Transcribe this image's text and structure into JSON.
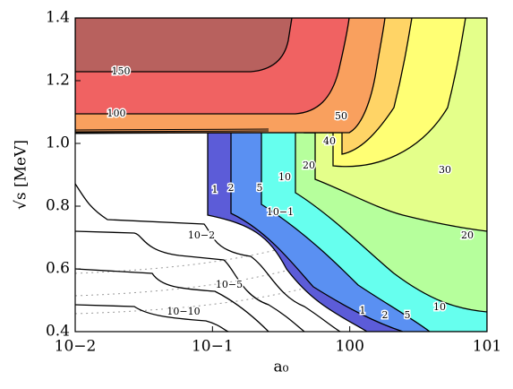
{
  "chart_data": {
    "type": "contour",
    "xlabel": "a₀",
    "ylabel": "√s [MeV]",
    "xscale": "log",
    "xlim": [
      0.01,
      10
    ],
    "ylim": [
      0.4,
      1.4
    ],
    "xticks": [
      {
        "value": 0.01,
        "label": "10−2"
      },
      {
        "value": 0.1,
        "label": "10−1"
      },
      {
        "value": 1,
        "label": "100"
      },
      {
        "value": 10,
        "label": "101"
      }
    ],
    "yticks": [
      0.4,
      0.6,
      0.8,
      {
        "value": 1,
        "label": "1.0"
      },
      1.2,
      1.4
    ],
    "levels": [
      1,
      2,
      5,
      10,
      20,
      30,
      40,
      50,
      100,
      150,
      0.1,
      0.01,
      1e-05,
      1e-10
    ],
    "value_labels": [
      "1",
      "2",
      "5",
      "10",
      "20",
      "30",
      "40",
      "50",
      "100",
      "150",
      "10−1",
      "10−2",
      "10−5",
      "10−10"
    ],
    "colors": [
      "#5c5cd8",
      "#5a90f2",
      "#66ffee",
      "#b6ff9c",
      "#e4ff8a",
      "#ffff74",
      "#ffd466",
      "#f9a05e",
      "#f06262",
      "#b8615e",
      "#ffffff",
      "#ffffff",
      "#ffffff",
      "#ffffff"
    ]
  }
}
